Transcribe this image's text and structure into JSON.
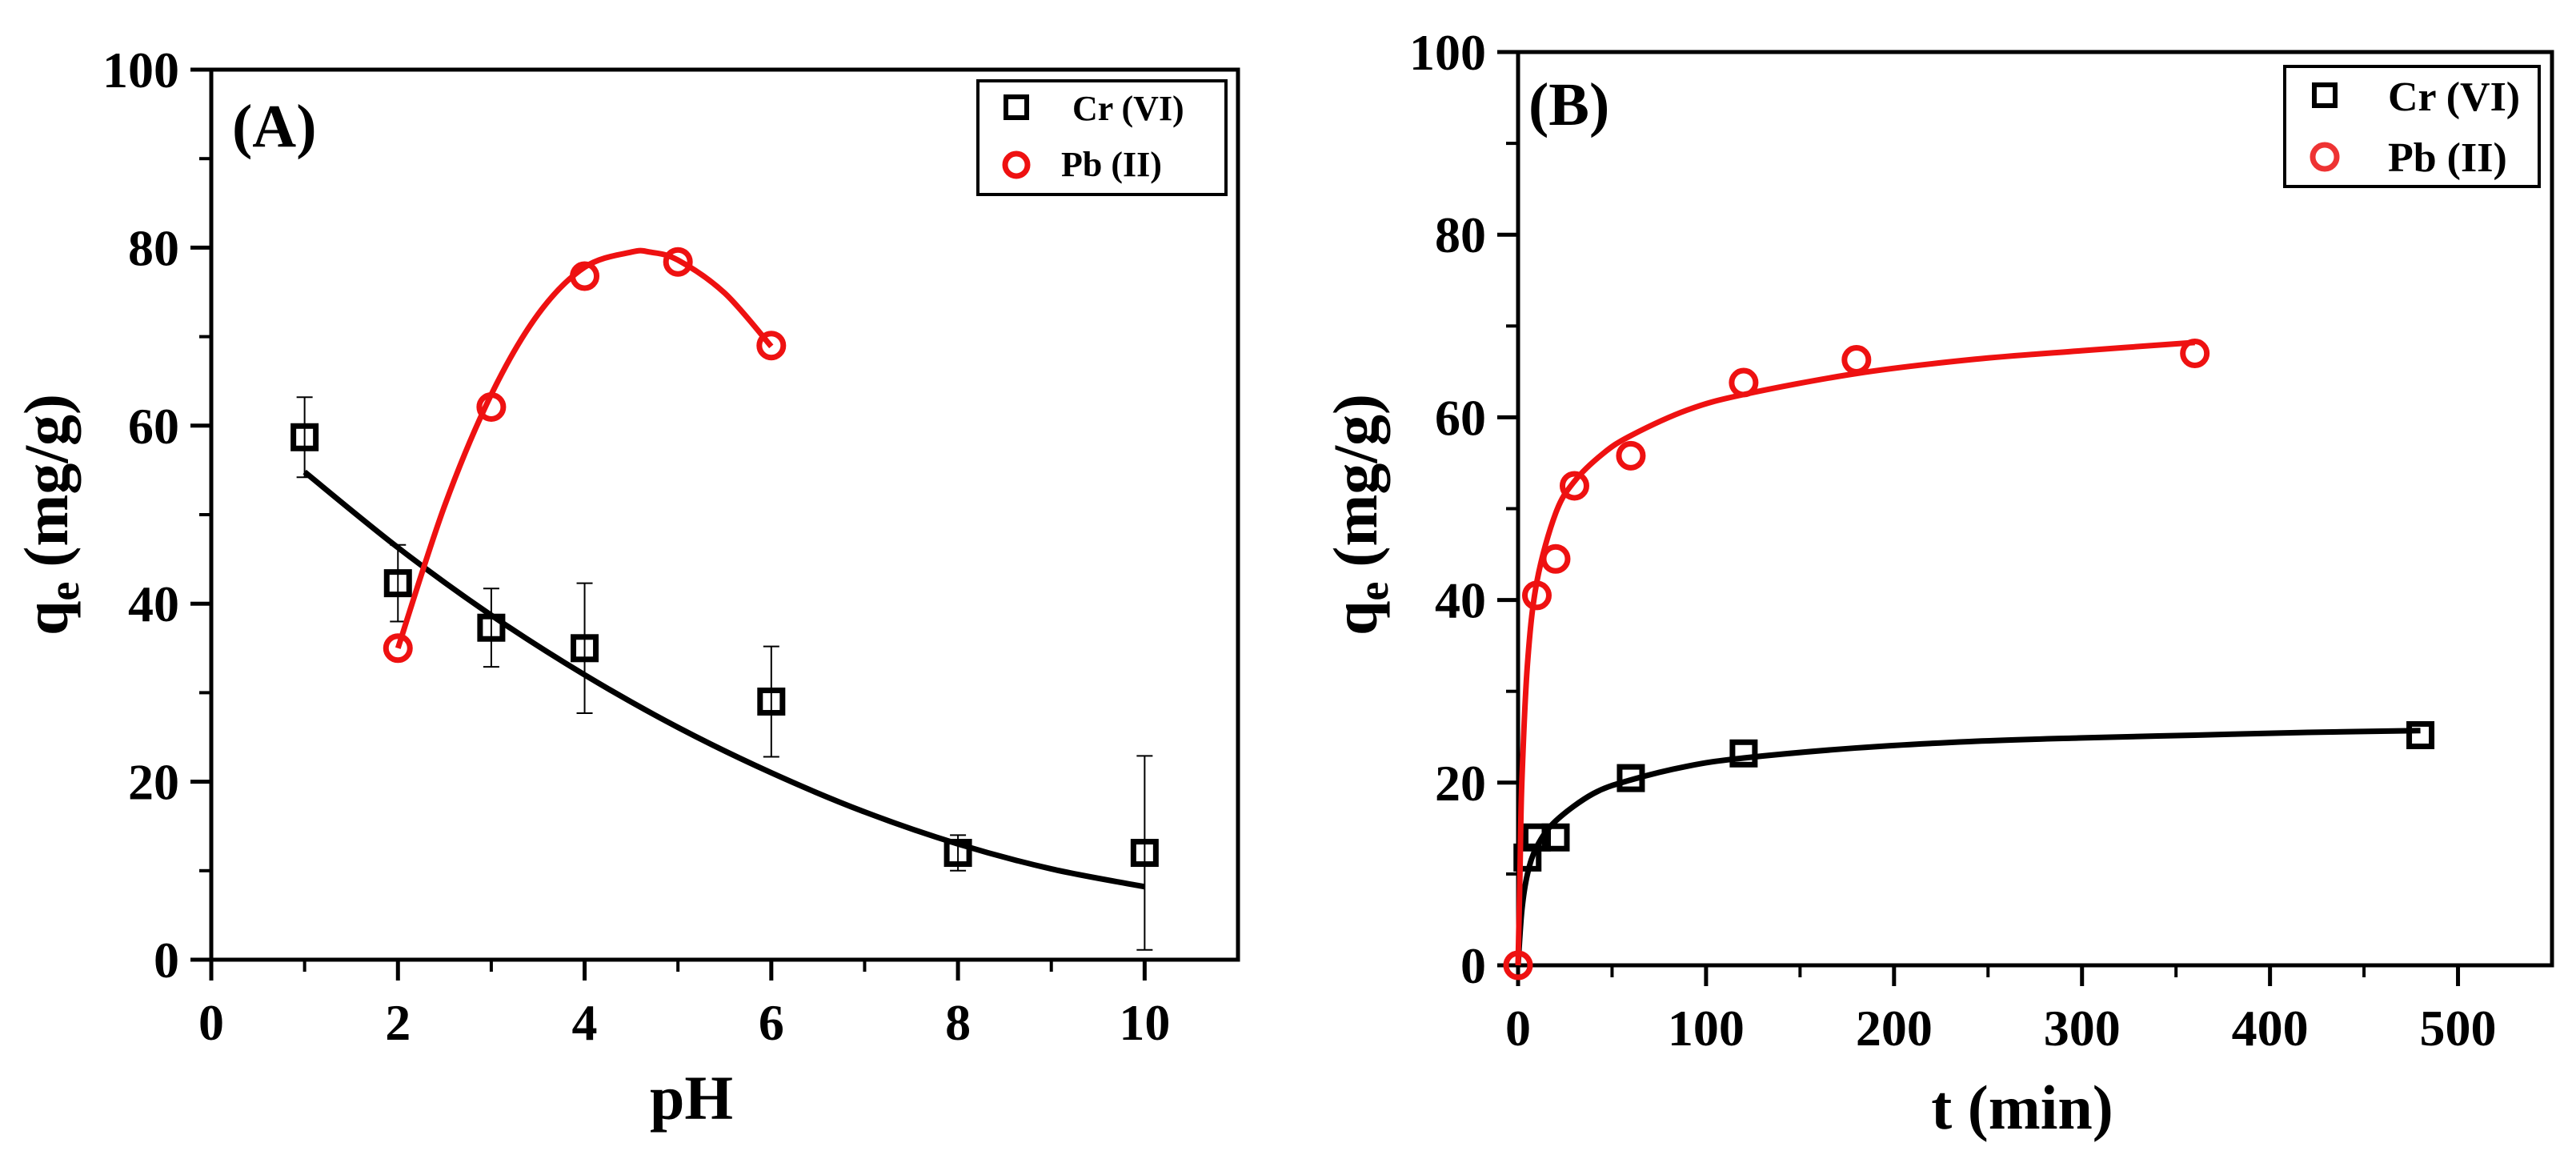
{
  "colors": {
    "cr": "#000000",
    "pb": "#ee1111",
    "pb_fit": "#ee1111",
    "axis": "#000000",
    "background": "#ffffff"
  },
  "chart_data": [
    {
      "type": "scatter",
      "panel_label": "(A)",
      "xlabel": "pH",
      "ylabel_main": "q",
      "ylabel_sub": "e",
      "ylabel_unit": "(mg/g)",
      "xlim": [
        0,
        11
      ],
      "ylim": [
        0,
        100
      ],
      "xticks": [
        0,
        2,
        4,
        6,
        8,
        10
      ],
      "yticks": [
        0,
        20,
        40,
        60,
        80,
        100
      ],
      "legend_position": "top-right",
      "series": [
        {
          "name": "Cr (VI)",
          "marker": "square",
          "color": "#000000",
          "x": [
            1,
            2,
            3,
            4,
            6,
            8,
            10
          ],
          "y": [
            58.7,
            42.3,
            37.3,
            35.0,
            29.0,
            12.0,
            12.0
          ],
          "yerr": [
            4.5,
            4.3,
            4.4,
            7.3,
            6.2,
            2.0,
            10.9
          ],
          "fit": {
            "x": [
              1,
              2,
              3,
              4,
              5,
              6,
              7,
              8,
              9,
              10
            ],
            "y": [
              54.8,
              46.3,
              38.7,
              32.0,
              26.1,
              21.0,
              16.6,
              13.0,
              10.2,
              8.2
            ]
          }
        },
        {
          "name": "Pb (II)",
          "marker": "circle",
          "color": "#ee1111",
          "x": [
            2,
            3,
            4,
            5,
            6
          ],
          "y": [
            35.0,
            62.1,
            76.8,
            78.4,
            69.0
          ],
          "fit": {
            "x": [
              2,
              2.5,
              3,
              3.5,
              4,
              4.5,
              4.7,
              5,
              5.5,
              6
            ],
            "y": [
              35.0,
              51.0,
              63.5,
              72.5,
              77.8,
              79.5,
              79.5,
              78.6,
              74.9,
              68.9
            ]
          }
        }
      ]
    },
    {
      "type": "scatter",
      "panel_label": "(B)",
      "xlabel": "t (min)",
      "ylabel_main": "q",
      "ylabel_sub": "e",
      "ylabel_unit": "(mg/g)",
      "xlim": [
        0,
        550
      ],
      "ylim": [
        0,
        100
      ],
      "xticks": [
        0,
        100,
        200,
        300,
        400,
        500
      ],
      "yticks": [
        0,
        20,
        40,
        60,
        80,
        100
      ],
      "legend_position": "top-right",
      "series": [
        {
          "name": "Cr (VI)",
          "marker": "square",
          "color": "#000000",
          "x": [
            5,
            10,
            20,
            60,
            120,
            480
          ],
          "y": [
            11.8,
            14.0,
            14.0,
            20.5,
            23.2,
            25.2
          ],
          "fit": {
            "x": [
              0,
              2,
              5,
              10,
              20,
              40,
              60,
              90,
              120,
              180,
              240,
              300,
              360,
              420,
              480
            ],
            "y": [
              0,
              6.0,
              10.0,
              13.0,
              15.8,
              18.8,
              20.3,
              21.8,
              22.7,
              23.8,
              24.5,
              24.9,
              25.2,
              25.5,
              25.7
            ]
          }
        },
        {
          "name": "Pb (II)",
          "marker": "circle",
          "color": "#ee1111",
          "x": [
            0,
            10,
            20,
            30,
            60,
            120,
            180,
            360
          ],
          "y": [
            0,
            40.5,
            44.5,
            52.5,
            55.8,
            63.8,
            66.3,
            67.0
          ],
          "fit": {
            "x": [
              0,
              1,
              2,
              5,
              10,
              20,
              30,
              45,
              60,
              90,
              120,
              180,
              240,
              300,
              360
            ],
            "y": [
              0,
              10.0,
              20.0,
              33.0,
              42.0,
              49.5,
              53.0,
              56.0,
              58.0,
              60.8,
              62.5,
              64.8,
              66.3,
              67.3,
              68.2
            ]
          }
        }
      ]
    }
  ]
}
